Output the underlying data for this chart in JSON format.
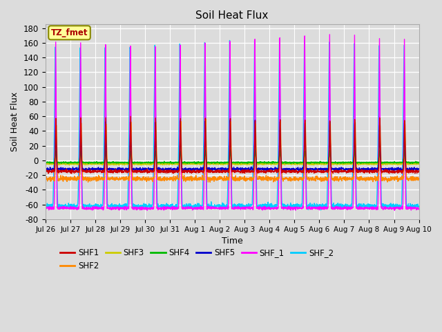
{
  "title": "Soil Heat Flux",
  "xlabel": "Time",
  "ylabel": "Soil Heat Flux",
  "ylim": [
    -80,
    185
  ],
  "yticks": [
    -80,
    -60,
    -40,
    -20,
    0,
    20,
    40,
    60,
    80,
    100,
    120,
    140,
    160,
    180
  ],
  "background_color": "#dcdcdc",
  "plot_bg_color": "#dcdcdc",
  "grid_color": "white",
  "series_colors": {
    "SHF1": "#cc0000",
    "SHF2": "#ff8800",
    "SHF3": "#cccc00",
    "SHF4": "#00bb00",
    "SHF5": "#0000cc",
    "SHF_1": "#ff00ff",
    "SHF_2": "#00ccff"
  },
  "annotation_text": "TZ_fmet",
  "annotation_color": "#aa0000",
  "annotation_bg": "#ffff99",
  "annotation_border": "#888800",
  "n_days": 15,
  "points_per_day": 144,
  "xtick_labels": [
    "Jul 26",
    "Jul 27",
    "Jul 28",
    "Jul 29",
    "Jul 30",
    "Jul 31",
    "Aug 1",
    "Aug 2",
    "Aug 3",
    "Aug 4",
    "Aug 5",
    "Aug 6",
    "Aug 7",
    "Aug 8",
    "Aug 9",
    "Aug 10"
  ]
}
